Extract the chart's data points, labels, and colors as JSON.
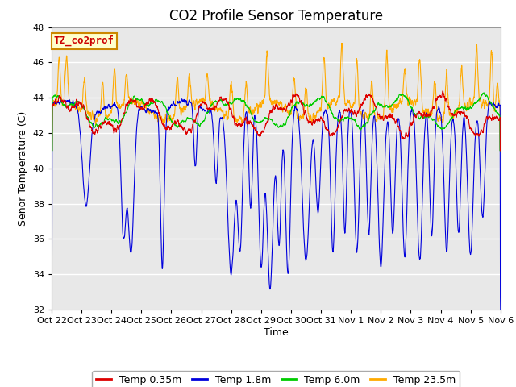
{
  "title": "CO2 Profile Sensor Temperature",
  "ylabel": "Senor Temperature (C)",
  "xlabel": "Time",
  "ylim": [
    32,
    48
  ],
  "yticks": [
    32,
    34,
    36,
    38,
    40,
    42,
    44,
    46,
    48
  ],
  "xtick_labels": [
    "Oct 22",
    "Oct 23",
    "Oct 24",
    "Oct 25",
    "Oct 26",
    "Oct 27",
    "Oct 28",
    "Oct 29",
    "Oct 30",
    "Oct 31",
    "Nov 1",
    "Nov 2",
    "Nov 3",
    "Nov 4",
    "Nov 5",
    "Nov 6"
  ],
  "colors": {
    "red": "#dd0000",
    "blue": "#0000dd",
    "green": "#00cc00",
    "orange": "#ffaa00"
  },
  "legend_labels": [
    "Temp 0.35m",
    "Temp 1.8m",
    "Temp 6.0m",
    "Temp 23.5m"
  ],
  "legend_colors": [
    "#dd0000",
    "#0000dd",
    "#00cc00",
    "#ffaa00"
  ],
  "annotation_text": "TZ_co2prof",
  "annotation_color": "#cc0000",
  "annotation_bg": "#ffffcc",
  "annotation_border": "#cc8800",
  "plot_bg": "#e8e8e8",
  "title_fontsize": 12,
  "axis_fontsize": 9,
  "tick_fontsize": 8,
  "legend_fontsize": 9,
  "linewidth": 0.8
}
